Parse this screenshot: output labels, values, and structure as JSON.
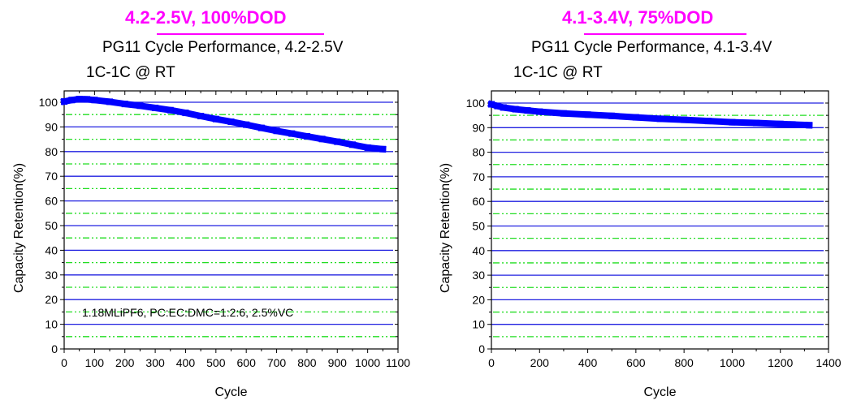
{
  "chart_data": [
    {
      "type": "scatter",
      "headline": "4.2-2.5V, 100%DOD",
      "title": "PG11  Cycle Performance, 4.2-2.5V",
      "subtitle": "1C-1C @ RT",
      "xlabel": "Cycle",
      "ylabel": "Capacity Retention(%)",
      "xlim": [
        0,
        1100
      ],
      "ylim": [
        0,
        105
      ],
      "xticks": [
        0,
        100,
        200,
        300,
        400,
        500,
        600,
        700,
        800,
        900,
        1000,
        1100
      ],
      "xtick_labels": [
        "0",
        "100",
        "200",
        "300",
        "400",
        "500",
        "600",
        "700",
        "800",
        "900",
        "1000",
        "1100"
      ],
      "yticks": [
        0,
        10,
        20,
        30,
        40,
        50,
        60,
        70,
        80,
        90,
        100
      ],
      "ytick_labels": [
        "0",
        "10",
        "20",
        "30",
        "40",
        "50",
        "60",
        "70",
        "80",
        "90",
        "100"
      ],
      "grid": {
        "major": "blue solid",
        "minor": "green dash-dot-dot"
      },
      "annotation": "1.18MLiPF6, PC:EC:DMC=1:2:6, 2.5%VC",
      "series": [
        {
          "name": "PG11 4.2-2.5V",
          "color": "#0000ff",
          "x": [
            0,
            25,
            50,
            75,
            100,
            150,
            200,
            250,
            300,
            350,
            400,
            450,
            500,
            550,
            600,
            650,
            700,
            750,
            800,
            850,
            900,
            950,
            1000,
            1050
          ],
          "y": [
            100.3,
            100.9,
            101.3,
            101.2,
            100.9,
            100.2,
            99.3,
            98.6,
            97.7,
            96.8,
            95.7,
            94.4,
            93.2,
            92.1,
            90.9,
            89.6,
            88.4,
            87.3,
            86.2,
            85.1,
            84.0,
            82.8,
            81.6,
            81.0
          ]
        }
      ]
    },
    {
      "type": "scatter",
      "headline": "4.1-3.4V, 75%DOD",
      "title": "PG11  Cycle Performance, 4.1-3.4V",
      "subtitle": "1C-1C @ RT",
      "xlabel": "Cycle",
      "ylabel": "Capacity Retention(%)",
      "xlim": [
        0,
        1400
      ],
      "ylim": [
        0,
        105
      ],
      "xticks": [
        0,
        200,
        400,
        600,
        800,
        1000,
        1200,
        1400
      ],
      "xtick_labels": [
        "0",
        "200",
        "400",
        "600",
        "800",
        "1000",
        "1200",
        "1400"
      ],
      "yticks": [
        0,
        10,
        20,
        30,
        40,
        50,
        60,
        70,
        80,
        90,
        100
      ],
      "ytick_labels": [
        "0",
        "10",
        "20",
        "30",
        "40",
        "50",
        "60",
        "70",
        "80",
        "90",
        "100"
      ],
      "grid": {
        "major": "blue solid",
        "minor": "green dash-dot-dot"
      },
      "series": [
        {
          "name": "PG11 4.1-3.4V",
          "color": "#0000ff",
          "x": [
            0,
            25,
            50,
            100,
            150,
            200,
            300,
            400,
            500,
            600,
            700,
            800,
            900,
            1000,
            1100,
            1200,
            1250,
            1300,
            1320
          ],
          "y": [
            99.5,
            98.8,
            98.2,
            97.5,
            97.0,
            96.5,
            95.8,
            95.3,
            94.8,
            94.2,
            93.6,
            93.2,
            92.7,
            92.2,
            91.9,
            91.5,
            91.3,
            91.1,
            91.0
          ]
        }
      ]
    }
  ]
}
